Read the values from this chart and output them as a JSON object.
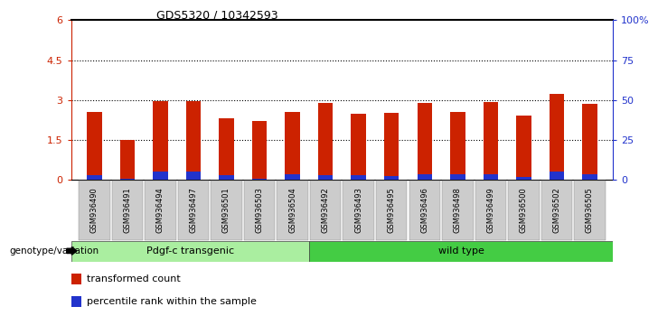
{
  "title": "GDS5320 / 10342593",
  "samples": [
    "GSM936490",
    "GSM936491",
    "GSM936494",
    "GSM936497",
    "GSM936501",
    "GSM936503",
    "GSM936504",
    "GSM936492",
    "GSM936493",
    "GSM936495",
    "GSM936496",
    "GSM936498",
    "GSM936499",
    "GSM936500",
    "GSM936502",
    "GSM936505"
  ],
  "red_values": [
    2.55,
    1.5,
    2.97,
    2.96,
    2.3,
    2.22,
    2.55,
    2.88,
    2.48,
    2.52,
    2.88,
    2.55,
    2.93,
    2.4,
    3.22,
    2.85
  ],
  "blue_values": [
    0.18,
    0.05,
    0.32,
    0.3,
    0.18,
    0.05,
    0.2,
    0.18,
    0.18,
    0.14,
    0.2,
    0.2,
    0.2,
    0.1,
    0.33,
    0.2
  ],
  "group1_label": "Pdgf-c transgenic",
  "group2_label": "wild type",
  "group1_count": 7,
  "group2_count": 9,
  "ylim_left": [
    0,
    6
  ],
  "ylim_right": [
    0,
    100
  ],
  "yticks_left": [
    0,
    1.5,
    3.0,
    4.5,
    6.0
  ],
  "yticks_right": [
    0,
    25,
    50,
    75,
    100
  ],
  "ytick_labels_left": [
    "0",
    "1.5",
    "3",
    "4.5",
    "6"
  ],
  "ytick_labels_right": [
    "0",
    "25",
    "50",
    "75",
    "100%"
  ],
  "hlines": [
    1.5,
    3.0,
    4.5
  ],
  "bar_color_red": "#cc2200",
  "bar_color_blue": "#2233cc",
  "group1_color": "#aaeea0",
  "group2_color": "#44cc44",
  "genotype_label": "genotype/variation",
  "legend_red": "transformed count",
  "legend_blue": "percentile rank within the sample",
  "bg_color": "#ffffff",
  "tick_label_bg": "#cccccc",
  "bar_width": 0.45
}
